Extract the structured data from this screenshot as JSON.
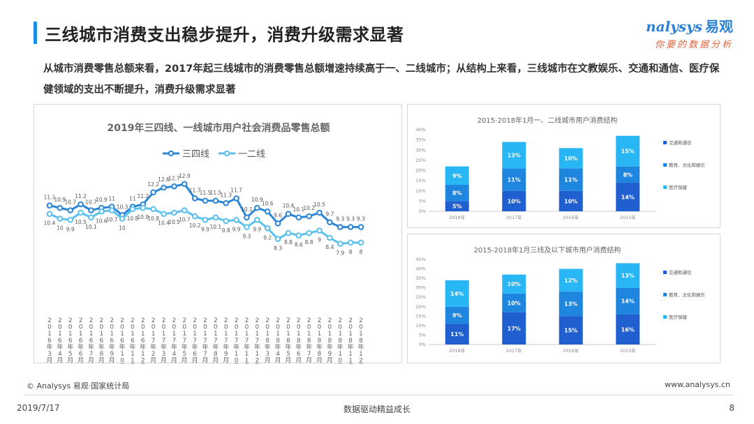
{
  "page": {
    "title": "三线城市消费支出稳步提升，消费升级需求显著",
    "subtitle": "从城市消费零售总额来看，2017年起三线城市的消费零售总额增速持续高于一、二线城市；从结构上来看，三线城市在文教娱乐、交通和通信、医疗保健领域的支出不断提升，消费升级需求显著",
    "logo_main": "nalysys",
    "logo_cn": "易观",
    "logo_sub": "你要的数据分析",
    "source": "© Analysys 易观·国家统计局",
    "url": "www.analysys.cn",
    "date": "2019/7/17",
    "footer_center": "数据驱动精益成长",
    "page_number": "8"
  },
  "colors": {
    "accent": "#1a8fe3",
    "series_third": "#2a86d4",
    "series_first": "#5cc0ec",
    "bar_transport": "#1f5fd0",
    "bar_education": "#1f86e0",
    "bar_medical": "#29b6f5"
  },
  "chart_data": [
    {
      "type": "line",
      "title": "2019年三四线、一线城市用户社会消费品零售总额",
      "x": [
        "2016年3月",
        "2016年4月",
        "2016年5月",
        "2016年6月",
        "2016年7月",
        "2016年8月",
        "2016年9月",
        "2016年10月",
        "2016年11月",
        "2016年12月",
        "2017年2月",
        "2017年3月",
        "2017年4月",
        "2017年5月",
        "2017年6月",
        "2017年7月",
        "2017年8月",
        "2017年9月",
        "2017年10月",
        "2017年11月",
        "2017年12月",
        "2018年3月",
        "2018年4月",
        "2018年5月",
        "2018年6月",
        "2018年7月",
        "2018年8月",
        "2018年9月",
        "2018年10月",
        "2018年11月",
        "2018年12月"
      ],
      "series": [
        {
          "name": "三四线",
          "values": [
            11.1,
            10.9,
            10.7,
            11.2,
            10.7,
            10.9,
            11,
            10.3,
            11,
            11.2,
            12.2,
            12.6,
            12.7,
            12.9,
            11.7,
            11.5,
            11.5,
            11.3,
            11.7,
            10.1,
            10.9,
            10.6,
            9.6,
            10.4,
            10.1,
            10.2,
            10.5,
            9.7,
            9.3,
            9.3,
            9.3
          ]
        },
        {
          "name": "一二线",
          "values": [
            10.4,
            10,
            9.9,
            10.5,
            10.1,
            10.6,
            10.7,
            10,
            10.8,
            10.9,
            10.8,
            10.4,
            10.5,
            10.7,
            10.2,
            9.9,
            10.1,
            9.8,
            9.9,
            9.3,
            9.9,
            9.2,
            8.3,
            8.8,
            8.6,
            8.8,
            9,
            8.4,
            7.9,
            8,
            8
          ]
        }
      ],
      "ylim": [
        7,
        14
      ]
    },
    {
      "type": "bar",
      "stacked": true,
      "title": "2015-2018年1月一、二线城市用户消费结构",
      "categories": [
        "2018年",
        "2017年",
        "2016年",
        "2015年"
      ],
      "y_ticks": [
        "0%",
        "5%",
        "10%",
        "15%",
        "20%",
        "25%",
        "30%",
        "35%",
        "40%"
      ],
      "ylim": [
        0,
        40
      ],
      "series": [
        {
          "name": "交通和通信",
          "values": [
            5,
            10,
            10,
            14
          ],
          "labels": [
            "5%",
            "10%",
            "10%",
            "14%"
          ]
        },
        {
          "name": "教育、文化和娱乐",
          "values": [
            8,
            11,
            11,
            8
          ],
          "labels": [
            "8%",
            "11%",
            "11%",
            "8%"
          ]
        },
        {
          "name": "医疗保健",
          "values": [
            9,
            13,
            10,
            15
          ],
          "labels": [
            "9%",
            "13%",
            "10%",
            "15%"
          ]
        }
      ]
    },
    {
      "type": "bar",
      "stacked": true,
      "title": "2015-2018年1月三线及以下城市用户消费结构",
      "categories": [
        "2018年",
        "2017年",
        "2016年",
        "2015年"
      ],
      "y_ticks": [
        "0%",
        "5%",
        "10%",
        "15%",
        "20%",
        "25%",
        "30%",
        "35%",
        "40%",
        "45%"
      ],
      "ylim": [
        0,
        45
      ],
      "series": [
        {
          "name": "交通和通信",
          "values": [
            11,
            17,
            15,
            16
          ],
          "labels": [
            "11%",
            "17%",
            "15%",
            "16%"
          ]
        },
        {
          "name": "教育、文化和娱乐",
          "values": [
            9,
            10,
            13,
            14
          ],
          "labels": [
            "9%",
            "10%",
            "13%",
            "14%"
          ]
        },
        {
          "name": "医疗保健",
          "values": [
            14,
            10,
            12,
            13
          ],
          "labels": [
            "14%",
            "10%",
            "12%",
            "13%"
          ]
        }
      ]
    }
  ]
}
